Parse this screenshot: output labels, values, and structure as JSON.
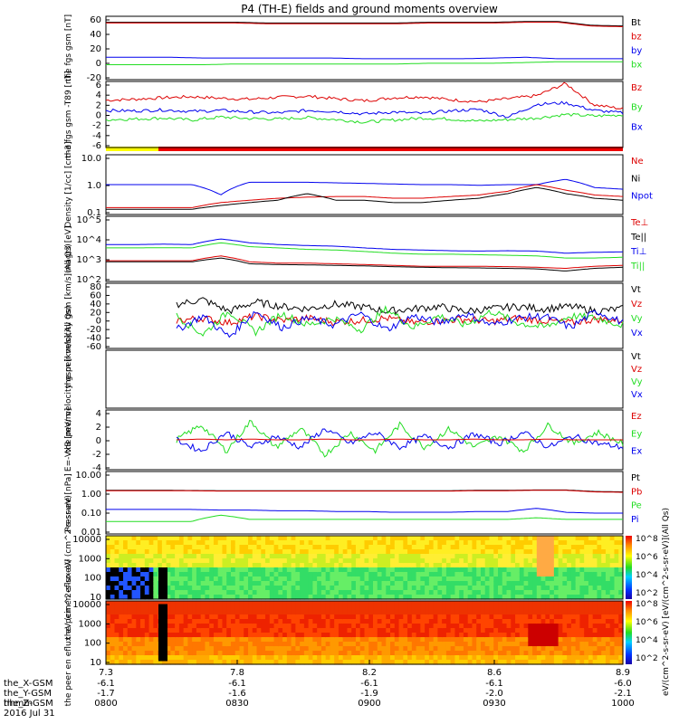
{
  "title": "P4 (TH-E) fields and ground moments overview",
  "colors": {
    "black": "#000000",
    "red": "#dd0000",
    "green": "#22dd22",
    "blue": "#0000ee",
    "yellow": "#ffff00",
    "bar_red": "#ee0000"
  },
  "icons": [
    "colorbar-ramp-icon"
  ],
  "chart_data": [
    {
      "type": "line",
      "panel": "fgs",
      "ylabel": "the fgs gsm [nT]",
      "yticks": [
        "60",
        "40",
        "20",
        "0",
        "-20"
      ],
      "ylim": [
        -20,
        65
      ],
      "legend": [
        "Bt",
        "bz",
        "by",
        "bx"
      ],
      "series": [
        {
          "name": "Bt",
          "color": "black",
          "values": [
            57,
            57,
            57,
            57,
            57,
            56,
            56,
            56,
            56,
            56,
            57,
            57,
            57,
            58,
            58,
            53,
            52
          ]
        },
        {
          "name": "bz",
          "color": "red",
          "values": [
            56,
            56,
            56,
            56,
            56,
            55,
            55,
            55,
            55,
            55,
            56,
            56,
            56,
            57,
            57,
            52,
            51
          ]
        },
        {
          "name": "by",
          "color": "blue",
          "values": [
            10,
            10,
            10,
            9,
            9,
            9,
            9,
            9,
            8,
            8,
            8,
            8,
            9,
            10,
            8,
            8,
            8
          ]
        },
        {
          "name": "bx",
          "color": "green",
          "values": [
            0,
            0,
            0,
            0,
            1,
            1,
            1,
            1,
            1,
            1,
            2,
            2,
            2,
            3,
            4,
            4,
            4
          ]
        }
      ]
    },
    {
      "type": "line",
      "panel": "fgs_detrended",
      "ylabel": "the fgs gsm -T89 [nT]",
      "yticks": [
        "6",
        "4",
        "2",
        "0",
        "-2",
        "-4",
        "-6"
      ],
      "ylim": [
        -7,
        6
      ],
      "legend": [
        "Bz",
        "By",
        "Bx"
      ],
      "series": [
        {
          "name": "Bz",
          "color": "red",
          "values": [
            2.3,
            2.5,
            2.8,
            3.0,
            2.7,
            2.5,
            2.9,
            3.1,
            2.6,
            2.2,
            2.8,
            3.0,
            2.4,
            2.0,
            2.6,
            3.2,
            5.6,
            1.4,
            0.6
          ]
        },
        {
          "name": "By",
          "color": "green",
          "values": [
            -1.5,
            -1.4,
            -1.2,
            -1.6,
            -1.0,
            -1.3,
            -1.4,
            -1.1,
            -1.5,
            -2.0,
            -1.6,
            -1.2,
            -1.4,
            -1.8,
            -1.5,
            -1.2,
            -0.5,
            -0.8,
            -0.6
          ]
        },
        {
          "name": "Bx",
          "color": "blue",
          "values": [
            0.3,
            0.2,
            0.4,
            0.1,
            0.3,
            0.0,
            -0.2,
            0.3,
            0.1,
            -0.4,
            0.0,
            -0.3,
            0.2,
            0.5,
            -1.0,
            1.5,
            1.8,
            0.3,
            -0.2
          ]
        }
      ]
    },
    {
      "type": "line",
      "panel": "density",
      "ylabel": "Density [1/cc] [cm-3]",
      "yscale": "log",
      "yticks": [
        "10.0",
        "1.0",
        "0.1"
      ],
      "ylim": [
        0.1,
        10
      ],
      "legend": [
        "Ne",
        "Ni",
        "Npot"
      ],
      "series": [
        {
          "name": "Npot",
          "color": "blue",
          "values": [
            1.0,
            1.0,
            1.0,
            1.0,
            0.45,
            1.2,
            1.2,
            1.2,
            1.15,
            1.1,
            1.05,
            1.0,
            1.0,
            0.95,
            1.0,
            1.0,
            1.5,
            0.8,
            0.7
          ]
        },
        {
          "name": "Ne",
          "color": "red",
          "values": [
            0.17,
            0.17,
            0.17,
            0.17,
            0.25,
            0.3,
            0.35,
            0.38,
            0.4,
            0.4,
            0.35,
            0.35,
            0.4,
            0.45,
            0.6,
            1.0,
            0.65,
            0.45,
            0.4
          ]
        },
        {
          "name": "Ni",
          "color": "black",
          "values": [
            0.15,
            0.15,
            0.15,
            0.15,
            0.2,
            0.25,
            0.3,
            0.5,
            0.3,
            0.3,
            0.25,
            0.25,
            0.3,
            0.35,
            0.5,
            0.8,
            0.5,
            0.35,
            0.3
          ]
        }
      ]
    },
    {
      "type": "line",
      "panel": "temperature",
      "ylabel": "magt3 [eV]",
      "yscale": "log",
      "yticks": [
        "10^5",
        "10^4",
        "10^3",
        "10^2"
      ],
      "ylim": [
        100,
        100000
      ],
      "legend": [
        "Te⊥",
        "Te||",
        "Ti⊥",
        "Ti||"
      ],
      "series": [
        {
          "name": "Ti⊥",
          "color": "blue",
          "values": [
            5000,
            5000,
            5200,
            5000,
            9000,
            6000,
            5000,
            4500,
            4200,
            3500,
            3000,
            2800,
            2600,
            2500,
            2600,
            2500,
            2000,
            2200,
            2300
          ]
        },
        {
          "name": "Ti||",
          "color": "green",
          "values": [
            3500,
            3500,
            3600,
            3500,
            6000,
            4000,
            3500,
            3000,
            2800,
            2400,
            2000,
            1800,
            1800,
            1700,
            1600,
            1500,
            1200,
            1200,
            1300
          ]
        },
        {
          "name": "Te⊥",
          "color": "red",
          "values": [
            900,
            900,
            900,
            900,
            1500,
            800,
            700,
            700,
            650,
            600,
            550,
            500,
            500,
            500,
            480,
            450,
            400,
            500,
            550
          ]
        },
        {
          "name": "Te||",
          "color": "black",
          "values": [
            800,
            800,
            800,
            800,
            1200,
            650,
            600,
            580,
            550,
            520,
            480,
            450,
            430,
            420,
            400,
            380,
            300,
            400,
            450
          ]
        }
      ]
    },
    {
      "type": "line",
      "panel": "peir_velocity",
      "ylabel": "the peir velocity gsm [km/s](All Qs)",
      "yticks": [
        "80",
        "60",
        "40",
        "20",
        "0",
        "-20",
        "-40",
        "-60"
      ],
      "ylim": [
        -60,
        80
      ],
      "legend": [
        "Vt",
        "Vz",
        "Vy",
        "Vx"
      ],
      "series": [
        {
          "name": "Vt",
          "color": "black",
          "values": [
            35,
            45,
            20,
            40,
            30,
            25,
            35,
            30,
            20,
            25,
            30,
            20,
            25,
            30,
            25,
            30,
            20,
            25
          ]
        },
        {
          "name": "Vz",
          "color": "red",
          "values": [
            0,
            5,
            -5,
            10,
            0,
            5,
            -3,
            0,
            5,
            -5,
            0,
            3,
            -2,
            5,
            0,
            -5,
            3,
            0
          ]
        },
        {
          "name": "Vy",
          "color": "green",
          "values": [
            10,
            -30,
            20,
            -25,
            15,
            -10,
            5,
            -20,
            25,
            -15,
            10,
            -10,
            20,
            -5,
            -15,
            10,
            5,
            -10
          ]
        },
        {
          "name": "Vx",
          "color": "blue",
          "values": [
            -20,
            10,
            -35,
            20,
            -15,
            5,
            -10,
            15,
            -20,
            10,
            -5,
            15,
            -10,
            5,
            10,
            -15,
            20,
            -5
          ]
        }
      ]
    },
    {
      "type": "line",
      "panel": "peer_velocity",
      "ylabel": "the peer velocity gsm [km/s](All Qs)",
      "yticks": [],
      "legend": [
        "Vt",
        "Vz",
        "Vy",
        "Vx"
      ],
      "series": []
    },
    {
      "type": "line",
      "panel": "efield",
      "ylabel": "E=-VxB [mV/m]",
      "yticks": [
        "4",
        "2",
        "0",
        "-2",
        "-4"
      ],
      "ylim": [
        -4,
        4
      ],
      "legend": [
        "Ez",
        "Ey",
        "Ex"
      ],
      "series": [
        {
          "name": "Ey",
          "color": "green",
          "values": [
            0,
            2,
            -1.5,
            2.5,
            -1,
            1.5,
            -2,
            1,
            -1.5,
            2,
            -1,
            1.5,
            -1,
            0.5,
            -1.5,
            2,
            -0.5,
            1,
            -0.5
          ]
        },
        {
          "name": "Ex",
          "color": "blue",
          "values": [
            0,
            -1.5,
            1,
            -1,
            0.5,
            -1,
            1.5,
            -0.5,
            1,
            -1,
            0.5,
            -1,
            0.8,
            -0.5,
            1,
            -1,
            0.5,
            -0.5,
            -1
          ]
        },
        {
          "name": "Ez",
          "color": "red",
          "values": [
            0,
            0.1,
            0,
            0.1,
            0,
            0,
            0.1,
            0,
            0,
            0.1,
            0,
            0,
            0.1,
            0,
            0,
            0.1,
            0,
            0,
            0
          ]
        }
      ]
    },
    {
      "type": "line",
      "panel": "pressure",
      "ylabel": "Pressure [nPa]",
      "yscale": "log",
      "yticks": [
        "10.00",
        "1.00",
        "0.10",
        "0.01"
      ],
      "ylim": [
        0.01,
        10
      ],
      "legend": [
        "Pt",
        "Pb",
        "Pe",
        "Pi"
      ],
      "series": [
        {
          "name": "Pt",
          "color": "black",
          "values": [
            1.25,
            1.25,
            1.25,
            1.22,
            1.2,
            1.2,
            1.2,
            1.2,
            1.2,
            1.2,
            1.2,
            1.2,
            1.2,
            1.25,
            1.25,
            1.3,
            1.3,
            1.1,
            1.05
          ]
        },
        {
          "name": "Pb",
          "color": "red",
          "values": [
            1.2,
            1.2,
            1.2,
            1.18,
            1.15,
            1.15,
            1.15,
            1.15,
            1.15,
            1.15,
            1.15,
            1.15,
            1.15,
            1.2,
            1.2,
            1.25,
            1.25,
            1.05,
            1.0
          ]
        },
        {
          "name": "Pi",
          "color": "blue",
          "values": [
            0.15,
            0.15,
            0.15,
            0.15,
            0.14,
            0.14,
            0.13,
            0.13,
            0.12,
            0.12,
            0.11,
            0.11,
            0.11,
            0.12,
            0.12,
            0.17,
            0.11,
            0.1,
            0.1
          ]
        },
        {
          "name": "Pe",
          "color": "green",
          "values": [
            0.04,
            0.04,
            0.04,
            0.04,
            0.08,
            0.05,
            0.05,
            0.05,
            0.05,
            0.05,
            0.05,
            0.05,
            0.05,
            0.05,
            0.05,
            0.06,
            0.05,
            0.05,
            0.05
          ]
        }
      ]
    },
    {
      "type": "heatmap",
      "panel": "peir_eflux",
      "ylabel": "the peir en eflux eV (cm^2-s-sr-eV)",
      "yscale": "log",
      "yticks": [
        "10000",
        "1000",
        "100",
        "10"
      ],
      "colorbar_ticks": [
        "10^8",
        "10^6",
        "10^4",
        "10^2"
      ],
      "colorbar_label": "eV/(cm^2-s-sr-eV) [eV/(cm^2-s-sr-eV)](All Qs)"
    },
    {
      "type": "heatmap",
      "panel": "peer_eflux",
      "ylabel": "the peer en eflux eV (cm^2-s-sr-eV)",
      "yscale": "log",
      "yticks": [
        "10000",
        "1000",
        "100",
        "10"
      ],
      "colorbar_ticks": [
        "10^8",
        "10^6",
        "10^4",
        "10^2"
      ]
    }
  ],
  "xaxis": {
    "ticks_top": [
      "7.3",
      "7.8",
      "8.2",
      "8.6",
      "8.9"
    ],
    "rows": [
      {
        "label": "the_X-GSM",
        "values": [
          "-6.1",
          "-6.1",
          "-6.1",
          "-6.1",
          "-6.0"
        ]
      },
      {
        "label": "the_Y-GSM",
        "values": [
          "-1.7",
          "-1.6",
          "-1.9",
          "-2.0",
          "-2.1"
        ]
      },
      {
        "label": "the_Z-GSM",
        "values": [
          "0800",
          "0830",
          "0900",
          "0930",
          "1000"
        ]
      }
    ],
    "hhmm_label": "hhmm",
    "date": "2016 Jul 31"
  }
}
